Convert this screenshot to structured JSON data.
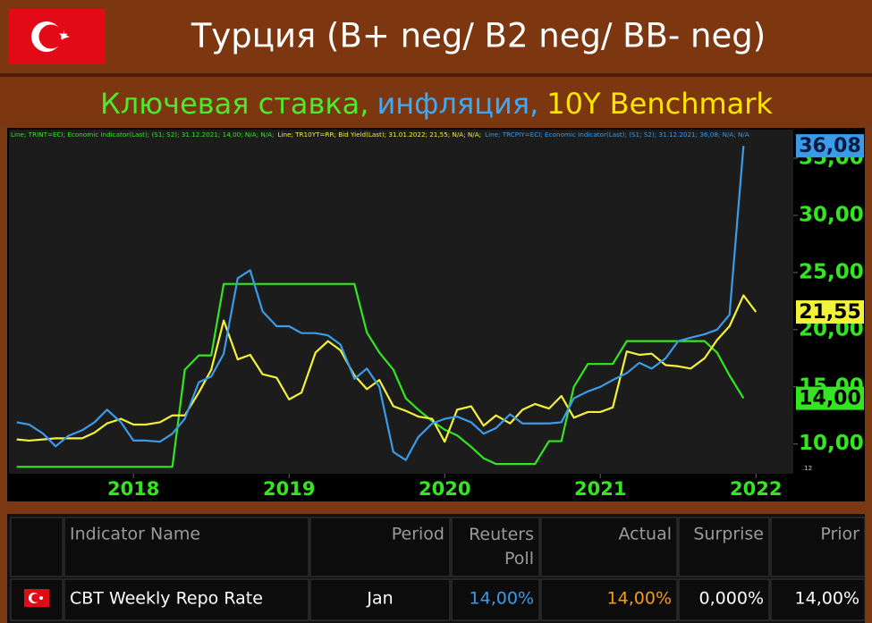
{
  "header": {
    "title": "Турция (B+ neg/ B2 neg/ BB- neg)",
    "subtitle": [
      {
        "text": "Ключевая ставка,",
        "color": "#4ee82e"
      },
      {
        "text": "инфляция,",
        "color": "#3fa9f5"
      },
      {
        "text": "10Y Benchmark",
        "color": "#ffe400"
      }
    ]
  },
  "chart_data": {
    "type": "line",
    "corner_label": ".12",
    "x": [
      2017.25,
      2017.33,
      2017.42,
      2017.5,
      2017.58,
      2017.67,
      2017.75,
      2017.83,
      2017.92,
      2018.0,
      2018.08,
      2018.17,
      2018.25,
      2018.33,
      2018.42,
      2018.5,
      2018.58,
      2018.67,
      2018.75,
      2018.83,
      2018.92,
      2019.0,
      2019.08,
      2019.17,
      2019.25,
      2019.33,
      2019.42,
      2019.5,
      2019.58,
      2019.67,
      2019.75,
      2019.83,
      2019.92,
      2020.0,
      2020.08,
      2020.17,
      2020.25,
      2020.33,
      2020.42,
      2020.5,
      2020.58,
      2020.67,
      2020.75,
      2020.83,
      2020.92,
      2021.0,
      2021.08,
      2021.17,
      2021.25,
      2021.33,
      2021.42,
      2021.5,
      2021.58,
      2021.67,
      2021.75,
      2021.83,
      2021.92,
      2022.0
    ],
    "xlim": [
      2017.2,
      2022.24
    ],
    "xticks": [
      2018,
      2019,
      2020,
      2021,
      2022
    ],
    "ylim": [
      7.4,
      37.5
    ],
    "yticks": [
      {
        "value": 10,
        "label": "10,00"
      },
      {
        "value": 15,
        "label": "15,00"
      },
      {
        "value": 20,
        "label": "20,00"
      },
      {
        "value": 25,
        "label": "25,00"
      },
      {
        "value": 30,
        "label": "30,00"
      },
      {
        "value": 35,
        "label": "35,00"
      }
    ],
    "grid": false,
    "series": [
      {
        "name": "Line; TRINT=ECI; Economic Indicator(Last); (S1; S2); 31.12.2021; 14,00; N/A; N/A;",
        "color": "#33e61f",
        "label_text_color": "#000000",
        "values": [
          8,
          8,
          8,
          8,
          8,
          8,
          8,
          8,
          8,
          8,
          8,
          8,
          8,
          16.5,
          17.75,
          17.75,
          24,
          24,
          24,
          24,
          24,
          24,
          24,
          24,
          24,
          24,
          24,
          19.75,
          18,
          16.5,
          14,
          13,
          12,
          11.25,
          10.75,
          9.75,
          8.75,
          8.25,
          8.25,
          8.25,
          8.25,
          10.25,
          10.25,
          15,
          17,
          17,
          17,
          19,
          19,
          19,
          19,
          19,
          19,
          19,
          18,
          16,
          14,
          null
        ],
        "value_labels": [
          null,
          null,
          null,
          null,
          null,
          null,
          null,
          null,
          null,
          null,
          null,
          null,
          null,
          null,
          null,
          null,
          null,
          null,
          null,
          null,
          null,
          null,
          null,
          null,
          null,
          null,
          null,
          null,
          null,
          null,
          null,
          null,
          null,
          null,
          null,
          null,
          null,
          null,
          null,
          null,
          null,
          null,
          null,
          null,
          null,
          null,
          null,
          null,
          null,
          null,
          null,
          null,
          null,
          null,
          null,
          null,
          "14,00",
          null
        ]
      },
      {
        "name": "Line; TR10YT=RR; Bid Yield(Last); 31.01.2022; 21,55; N/A; N/A;",
        "color": "#f2f23a",
        "label_text_color": "#000000",
        "values": [
          10.4,
          10.3,
          10.4,
          10.5,
          10.5,
          10.5,
          11.0,
          11.8,
          12.2,
          11.7,
          11.7,
          11.9,
          12.5,
          12.5,
          14.5,
          16.5,
          20.8,
          17.4,
          17.8,
          16.1,
          15.8,
          13.9,
          14.5,
          18.0,
          19.0,
          18.2,
          16.0,
          14.8,
          15.6,
          13.3,
          12.9,
          12.4,
          12.2,
          10.2,
          13.0,
          13.3,
          11.6,
          12.5,
          11.8,
          13.0,
          13.5,
          13.1,
          14.2,
          12.3,
          12.8,
          12.8,
          13.2,
          18.1,
          17.8,
          17.9,
          16.9,
          16.8,
          16.6,
          17.5,
          19.1,
          20.3,
          23.0,
          21.55
        ],
        "value_labels": [
          null,
          null,
          null,
          null,
          null,
          null,
          null,
          null,
          null,
          null,
          null,
          null,
          null,
          null,
          null,
          null,
          null,
          null,
          null,
          null,
          null,
          null,
          null,
          null,
          null,
          null,
          null,
          null,
          null,
          null,
          null,
          null,
          null,
          null,
          null,
          null,
          null,
          null,
          null,
          null,
          null,
          null,
          null,
          null,
          null,
          null,
          null,
          null,
          null,
          null,
          null,
          null,
          null,
          null,
          null,
          null,
          null,
          "21,55"
        ]
      },
      {
        "name": "Line; TRCPIY=ECI; Economic Indicator(Last); (S1; S2); 31.12.2021; 36,08; N/A; N/A",
        "color": "#3a9be8",
        "label_text_color": "#0a1a40",
        "values": [
          11.9,
          11.7,
          10.9,
          9.8,
          10.7,
          11.2,
          11.9,
          13.0,
          11.9,
          10.3,
          10.3,
          10.2,
          10.9,
          12.2,
          15.4,
          15.9,
          17.9,
          24.5,
          25.2,
          21.6,
          20.3,
          20.3,
          19.7,
          19.7,
          19.5,
          18.7,
          15.7,
          16.6,
          15.0,
          9.3,
          8.6,
          10.6,
          11.8,
          12.2,
          12.4,
          11.9,
          10.9,
          11.4,
          12.6,
          11.8,
          11.8,
          11.8,
          11.9,
          14.0,
          14.6,
          15.0,
          15.6,
          16.2,
          17.1,
          16.6,
          17.5,
          19.0,
          19.3,
          19.6,
          20.0,
          21.3,
          36.08,
          null
        ],
        "value_labels": [
          null,
          null,
          null,
          null,
          null,
          null,
          null,
          null,
          null,
          null,
          null,
          null,
          null,
          null,
          null,
          null,
          null,
          null,
          null,
          null,
          null,
          null,
          null,
          null,
          null,
          null,
          null,
          null,
          null,
          null,
          null,
          null,
          null,
          null,
          null,
          null,
          null,
          null,
          null,
          null,
          null,
          null,
          null,
          null,
          null,
          null,
          null,
          null,
          null,
          null,
          null,
          null,
          null,
          null,
          null,
          null,
          "36,08",
          null
        ]
      }
    ]
  },
  "table": {
    "columns": [
      "Indicator Name",
      "Period",
      "Reuters Poll",
      "Actual",
      "Surprise",
      "Prior"
    ],
    "rows": [
      [
        "CBT Weekly Repo Rate",
        "Jan",
        "14,00%",
        "14,00%",
        "0,000%",
        "14,00%"
      ]
    ],
    "cell_colors": [
      [
        "#ffffff",
        "#ffffff",
        "#3a9be8",
        "#f39c12",
        "#ffffff",
        "#ffffff"
      ]
    ]
  }
}
